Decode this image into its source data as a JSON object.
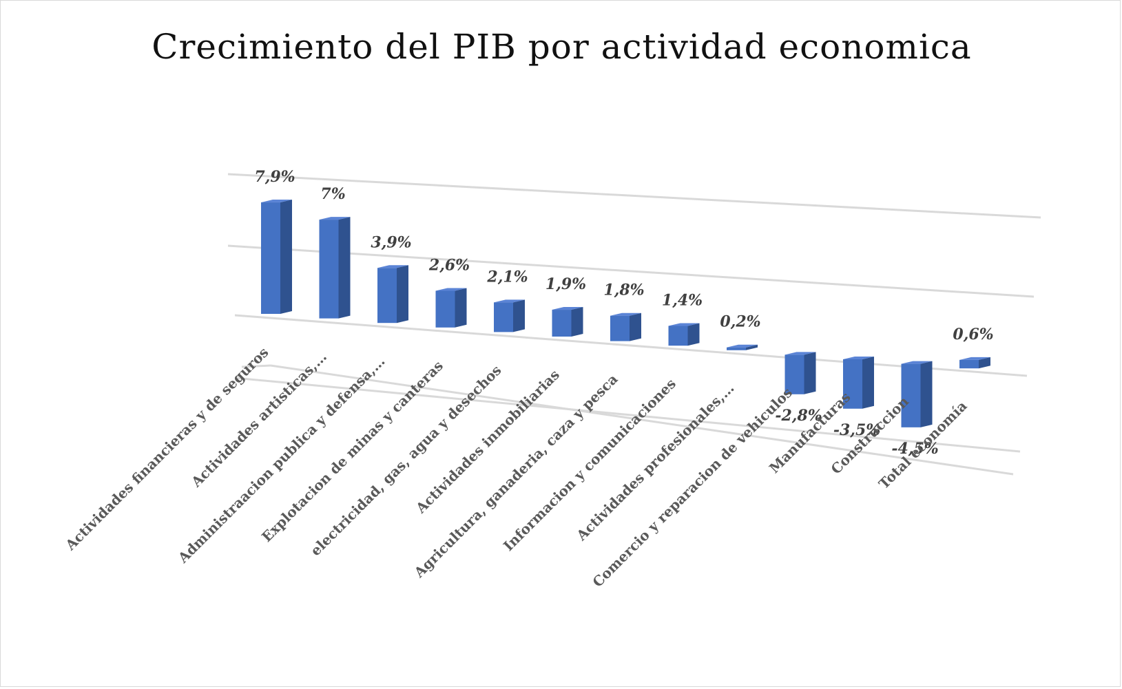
{
  "chart_data": {
    "type": "bar",
    "title": "Crecimiento del PIB por actividad economica",
    "xlabel": "",
    "ylabel": "",
    "grid": true,
    "categories": [
      "Actividades financieras y de seguros",
      "Actividades artisticas,…",
      "Administraacion publica y defensa,…",
      "Explotacion de minas y canteras",
      "electricidad, gas, agua y desechos",
      "Actividades inmobiliarias",
      "Agricultura, ganaderia, caza y pesca",
      "Informacion y comunicaciones",
      "Actividades profesionales,…",
      "Comercio y reparacion de vehiculos",
      "Manufacturas",
      "Construccion",
      "Total economía"
    ],
    "values": [
      7.9,
      7.0,
      3.9,
      2.6,
      2.1,
      1.9,
      1.8,
      1.4,
      0.2,
      -2.8,
      -3.5,
      -4.5,
      0.6
    ],
    "data_labels": [
      "7,9%",
      "7%",
      "3,9%",
      "2,6%",
      "2,1%",
      "1,9%",
      "1,8%",
      "1,4%",
      "0,2%",
      "-2,8%",
      "-3,5%",
      "-4,5%",
      "0,6%"
    ],
    "bar_color": "#4472C4",
    "bar_side_color": "#2F528F",
    "bar_top_color": "#5B84D6"
  }
}
